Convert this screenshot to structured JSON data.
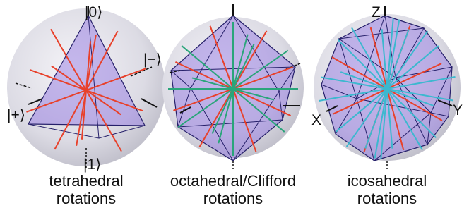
{
  "panels": [
    {
      "caption": [
        "tetrahedral",
        "rotations"
      ],
      "labels": [
        "|0⟩",
        "|−⟩",
        "|+⟩",
        "|1⟩"
      ]
    },
    {
      "caption": [
        "octahedral/Clifford",
        "rotations"
      ],
      "labels": []
    },
    {
      "caption": [
        "icosahedral",
        "rotations"
      ],
      "labels": [
        "Z",
        "X",
        "Y"
      ]
    }
  ]
}
